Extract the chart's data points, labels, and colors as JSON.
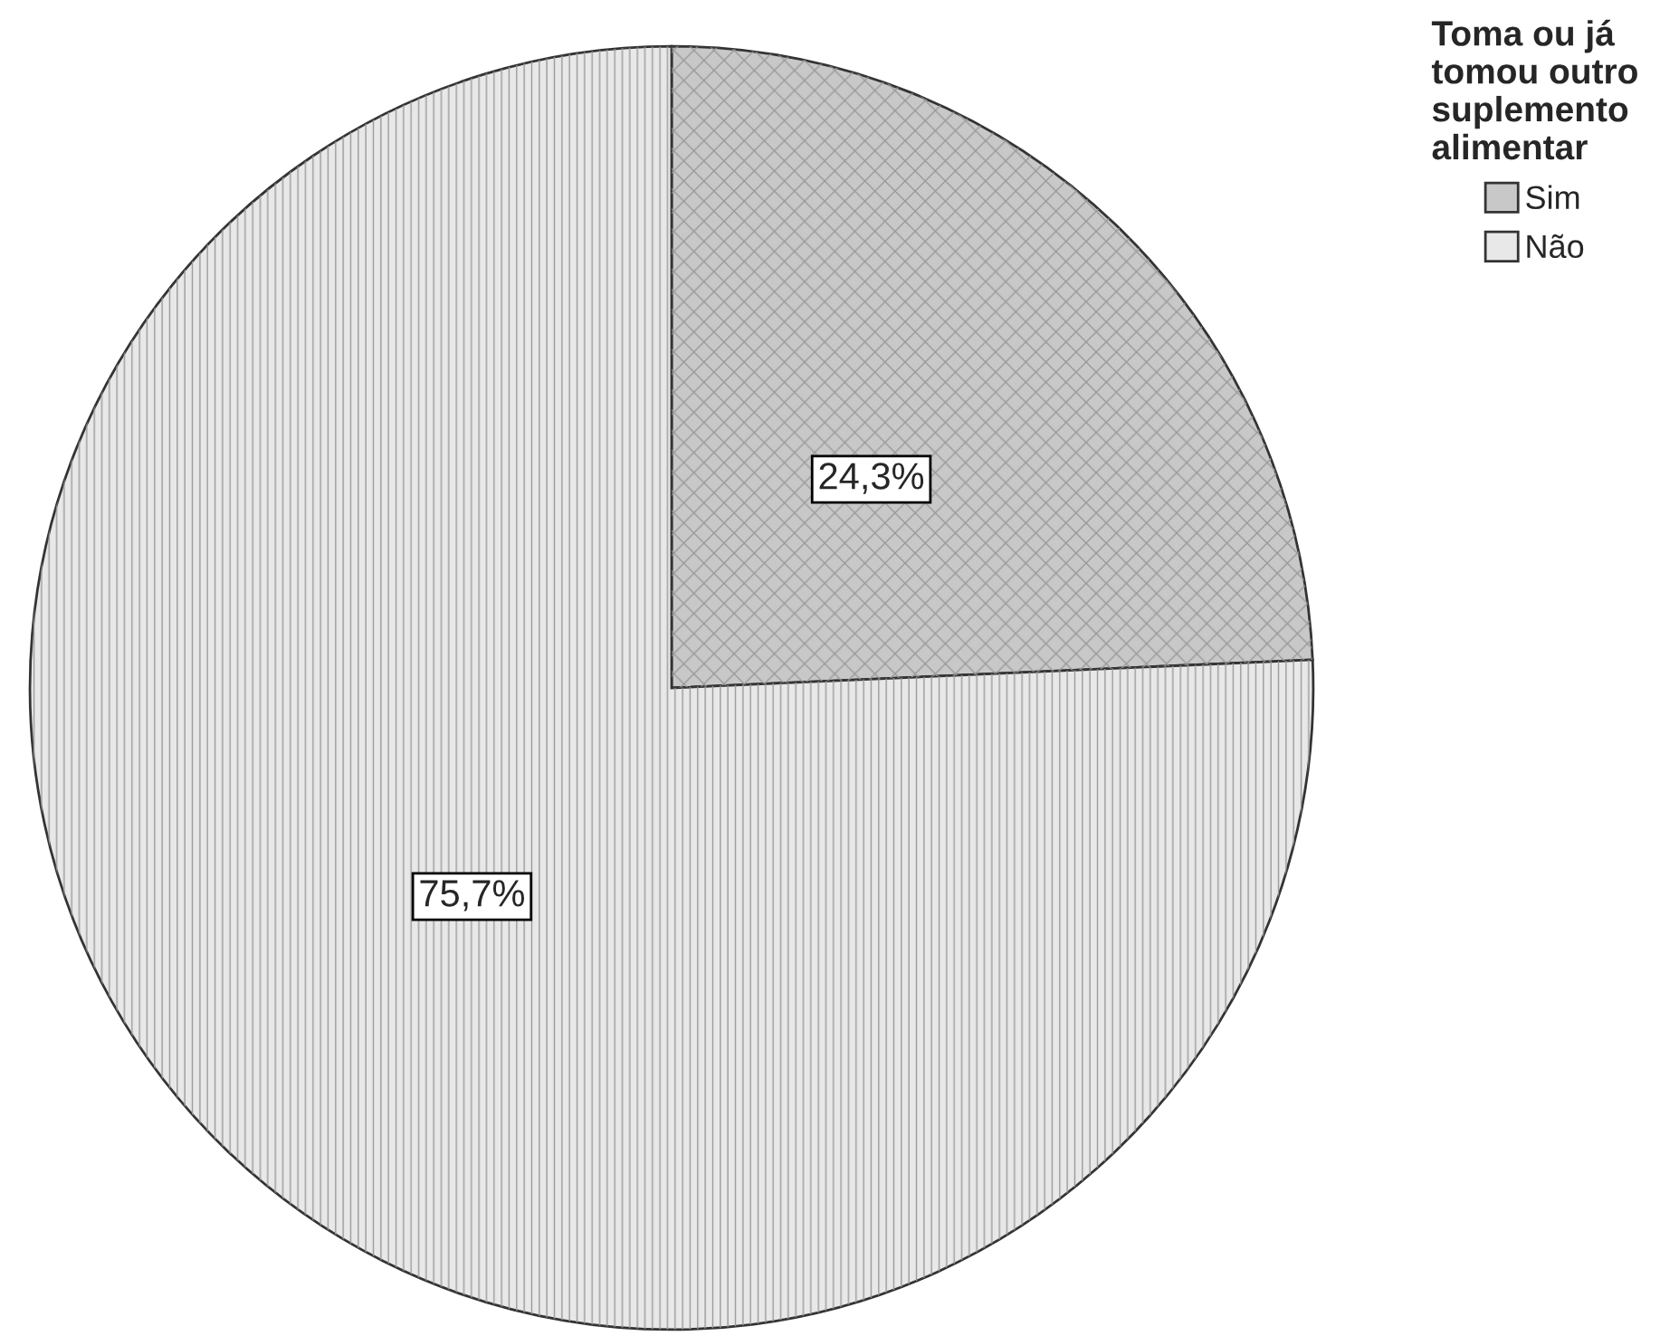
{
  "chart_data": {
    "type": "pie",
    "legend_title": "Toma ou já\ntomou outro\nsuplemento\nalimentar",
    "categories": [
      "Sim",
      "Não"
    ],
    "values": [
      24.3,
      75.7
    ],
    "colors": [
      "#c8c8c8",
      "#e8e8e8"
    ],
    "value_labels": [
      "24,3%",
      "75,7%"
    ],
    "legend": "top right"
  }
}
